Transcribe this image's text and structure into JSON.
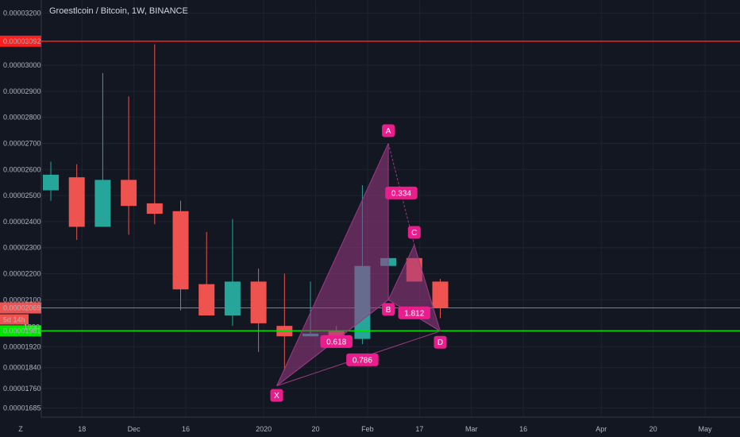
{
  "header": {
    "title": "Groestlcoin / Bitcoin, 1W, BINANCE"
  },
  "corner": {
    "label": "Z"
  },
  "chart_data": {
    "type": "candlestick",
    "title": "Groestlcoin / Bitcoin, 1W, BINANCE",
    "ylim": [
      1.65e-05,
      3.25e-05
    ],
    "y_ticks": [
      "0.00003200",
      "0.00003000",
      "0.00002900",
      "0.00002800",
      "0.00002700",
      "0.00002600",
      "0.00002500",
      "0.00002400",
      "0.00002300",
      "0.00002200",
      "0.00002100",
      "0.00001920",
      "0.00001840",
      "0.00001760",
      "0.00001685"
    ],
    "x_ticks": [
      {
        "label": "18",
        "i": 1.2
      },
      {
        "label": "Dec",
        "i": 3.2
      },
      {
        "label": "16",
        "i": 5.2
      },
      {
        "label": "2020",
        "i": 8.2
      },
      {
        "label": "20",
        "i": 10.2
      },
      {
        "label": "Feb",
        "i": 12.2
      },
      {
        "label": "17",
        "i": 14.2
      },
      {
        "label": "Mar",
        "i": 16.2
      },
      {
        "label": "16",
        "i": 18.2
      },
      {
        "label": "Apr",
        "i": 21.2
      },
      {
        "label": "20",
        "i": 23.2
      },
      {
        "label": "May",
        "i": 25.2
      }
    ],
    "candles": [
      {
        "o": 2.52e-05,
        "h": 2.63e-05,
        "l": 2.48e-05,
        "c": 2.58e-05
      },
      {
        "o": 2.57e-05,
        "h": 2.62e-05,
        "l": 2.33e-05,
        "c": 2.38e-05
      },
      {
        "o": 2.38e-05,
        "h": 2.97e-05,
        "l": 2.38e-05,
        "c": 2.56e-05
      },
      {
        "o": 2.56e-05,
        "h": 2.88e-05,
        "l": 2.35e-05,
        "c": 2.46e-05
      },
      {
        "o": 2.47e-05,
        "h": 3.08e-05,
        "l": 2.39e-05,
        "c": 2.43e-05
      },
      {
        "o": 2.44e-05,
        "h": 2.48e-05,
        "l": 2.06e-05,
        "c": 2.14e-05
      },
      {
        "o": 2.16e-05,
        "h": 2.36e-05,
        "l": 2.04e-05,
        "c": 2.04e-05
      },
      {
        "o": 2.04e-05,
        "h": 2.41e-05,
        "l": 2e-05,
        "c": 2.17e-05
      },
      {
        "o": 2.17e-05,
        "h": 2.22e-05,
        "l": 1.9e-05,
        "c": 2.01e-05
      },
      {
        "o": 2e-05,
        "h": 2.2e-05,
        "l": 1.83e-05,
        "c": 1.96e-05
      },
      {
        "o": 1.96e-05,
        "h": 2.17e-05,
        "l": 1.96e-05,
        "c": 1.97e-05
      },
      {
        "o": 1.98e-05,
        "h": 2e-05,
        "l": 1.94e-05,
        "c": 1.96e-05
      },
      {
        "o": 1.95e-05,
        "h": 2.54e-05,
        "l": 1.93e-05,
        "c": 2.23e-05
      },
      {
        "o": 2.23e-05,
        "h": 2.27e-05,
        "l": 2.23e-05,
        "c": 2.26e-05
      },
      {
        "o": 2.26e-05,
        "h": 2.26e-05,
        "l": 2.17e-05,
        "c": 2.17e-05
      },
      {
        "o": 2.17e-05,
        "h": 2.18e-05,
        "l": 2.03e-05,
        "c": 2.07e-05
      }
    ],
    "hlines": [
      {
        "price": 3.092e-05,
        "label": "0.00003092",
        "color": "#ff1e1e"
      },
      {
        "price": 2.069e-05,
        "label": "0.00002069",
        "color": "#ef5350"
      },
      {
        "price": 1.981e-05,
        "label": "0.00001981",
        "color": "#00e600"
      }
    ],
    "countdown": "5d 14h",
    "partial_tick": "1990",
    "pattern": {
      "points": [
        {
          "name": "X",
          "i": 8.7,
          "p": 1.77e-05
        },
        {
          "name": "A",
          "i": 13.0,
          "p": 2.7e-05
        },
        {
          "name": "B",
          "i": 13.0,
          "p": 2.1e-05
        },
        {
          "name": "C",
          "i": 14.0,
          "p": 2.31e-05
        },
        {
          "name": "D",
          "i": 15.0,
          "p": 1.98e-05
        }
      ],
      "ratios": [
        {
          "label": "0.334",
          "i": 13.5,
          "p": 2.51e-05
        },
        {
          "label": "0.618",
          "i": 11.0,
          "p": 1.94e-05
        },
        {
          "label": "1.812",
          "i": 14.0,
          "p": 2.05e-05
        },
        {
          "label": "0.786",
          "i": 12.0,
          "p": 1.87e-05
        }
      ]
    },
    "colors": {
      "up": "#26a69a",
      "down": "#ef5350",
      "pattern": "#9c3a84",
      "label": "#e91e8c",
      "grid": "#1e2330"
    }
  }
}
